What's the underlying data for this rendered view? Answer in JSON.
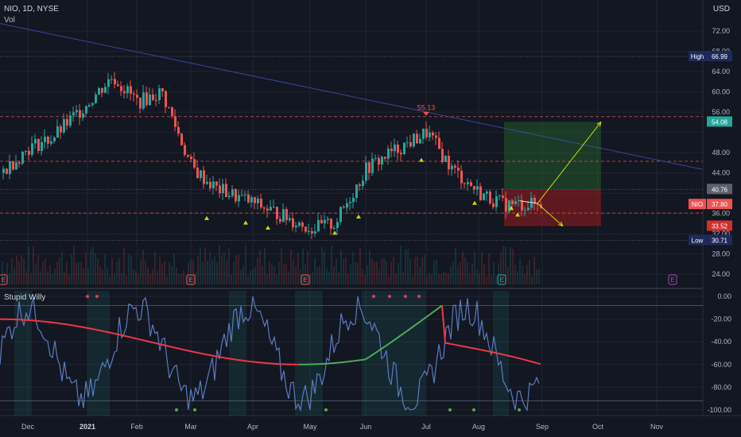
{
  "header": {
    "symbol_line": "NIO, 1D, NYSE",
    "volume_label": "Vol",
    "currency": "USD",
    "indicator_title": "Stupid Willy"
  },
  "colors": {
    "background": "#131722",
    "grid": "#1f2433",
    "text": "#b2b5be",
    "up": "#26a69a",
    "down": "#ef5350",
    "trendline": "#3f51b5",
    "target": "#2e7d32",
    "stop": "#b71c1c",
    "arrow": "#c6e000",
    "willy_line": "#5b7bbf"
  },
  "chart_data": [
    {
      "type": "candlestick",
      "title": "NIO, 1D, NYSE",
      "x_ticks": [
        "Dec",
        "2021",
        "Feb",
        "Mar",
        "Apr",
        "May",
        "Jun",
        "Jul",
        "Aug",
        "Sep",
        "Oct",
        "Nov"
      ],
      "y_ticks": [
        24.0,
        28.0,
        32.0,
        36.0,
        40.0,
        44.0,
        48.0,
        52.0,
        56.0,
        60.0,
        64.0,
        68.0,
        72.0
      ],
      "y_tick_labels": [
        "24.00",
        "28.00",
        "32.00",
        "36.00",
        "",
        "44.00",
        "48.00",
        "",
        "56.00",
        "60.00",
        "64.00",
        "68.00",
        "72.00"
      ],
      "ylim": [
        22,
        75
      ],
      "price_labels": [
        {
          "label": "High",
          "value": 66.99,
          "text": "66.99",
          "color": "#1e2a5a"
        },
        {
          "label": "",
          "value": 54.08,
          "text": "54.08",
          "color": "#26a69a"
        },
        {
          "label": "",
          "value": 40.76,
          "text": "40.76",
          "color": "#5d606b"
        },
        {
          "label": "NIO",
          "value": 37.8,
          "text": "37.80",
          "color": "#ef5350"
        },
        {
          "label": "",
          "value": 33.52,
          "text": "33.52",
          "color": "#d32f2f"
        },
        {
          "label": "Low",
          "value": 30.71,
          "text": "30.71",
          "color": "#1e2a5a"
        }
      ],
      "annotation_peak": "55.13",
      "close_series_anchors": [
        [
          "Dec",
          49
        ],
        [
          "Dec",
          51
        ],
        [
          "2021",
          58
        ],
        [
          "2021",
          63
        ],
        [
          "Feb",
          58
        ],
        [
          "Feb",
          60
        ],
        [
          "Mar",
          45
        ],
        [
          "Mar",
          41
        ],
        [
          "Apr",
          38
        ],
        [
          "Apr",
          36
        ],
        [
          "May",
          33
        ],
        [
          "May",
          34
        ],
        [
          "Jun",
          45
        ],
        [
          "Jun",
          48
        ],
        [
          "Jul",
          52
        ],
        [
          "Jul",
          45
        ],
        [
          "Aug",
          40
        ],
        [
          "Aug",
          37.8
        ]
      ],
      "earnings_markers": [
        "E",
        "E",
        "E",
        "E",
        "E"
      ],
      "indicator": {
        "name": "Stupid Willy",
        "y_ticks": [
          0,
          -20,
          -40,
          -60,
          -80,
          -100
        ],
        "y_tick_labels": [
          "0.00",
          "-20.00",
          "-40.00",
          "-60.00",
          "-80.00",
          "-100.00"
        ],
        "ylim": [
          -105,
          5
        ]
      }
    }
  ]
}
